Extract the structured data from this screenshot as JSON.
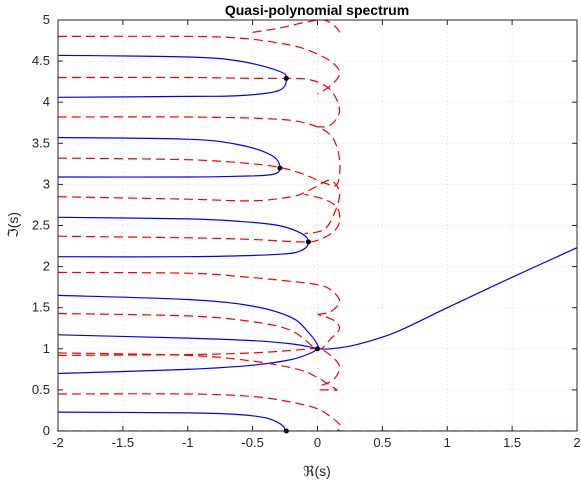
{
  "chart_data": {
    "type": "line",
    "title": "Quasi-polynomial spectrum",
    "xlabel": "ℜ(s)",
    "ylabel": "ℑ(s)",
    "xlim": [
      -2,
      2
    ],
    "ylim": [
      0,
      5
    ],
    "xticks": [
      -2,
      -1.5,
      -1,
      -0.5,
      0,
      0.5,
      1,
      1.5,
      2
    ],
    "xtick_labels": [
      "-2",
      "-1.5",
      "-1",
      "-0.5",
      "0",
      "0.5",
      "1",
      "1.5",
      "2"
    ],
    "yticks": [
      0,
      0.5,
      1,
      1.5,
      2,
      2.5,
      3,
      3.5,
      4,
      4.5,
      5
    ],
    "ytick_labels": [
      "0",
      "0.5",
      "1",
      "1.5",
      "2",
      "2.5",
      "3",
      "3.5",
      "4",
      "4.5",
      "5"
    ],
    "grid": true,
    "colors": {
      "real_curves": "#0000ff",
      "imag_curves": "#ff0000",
      "roots": "#000000"
    },
    "series": [
      {
        "color": "#0000ff",
        "style": "solid",
        "x": [
          -2,
          -1,
          -0.6,
          -0.4,
          -0.3,
          -0.26,
          -0.25
        ],
        "y": [
          0.23,
          0.22,
          0.2,
          0.16,
          0.1,
          0.05,
          0.0
        ]
      },
      {
        "color": "#0000ff",
        "style": "solid",
        "x": [
          -2,
          -1,
          -0.5,
          -0.2,
          -0.05,
          0.0
        ],
        "y": [
          0.7,
          0.75,
          0.8,
          0.87,
          0.95,
          1.0
        ]
      },
      {
        "color": "#0000ff",
        "style": "solid",
        "x": [
          -2,
          -1,
          -0.5,
          -0.2,
          -0.05,
          0.0
        ],
        "y": [
          1.17,
          1.13,
          1.1,
          1.06,
          1.02,
          1.0
        ]
      },
      {
        "color": "#0000ff",
        "style": "solid",
        "x": [
          -2,
          -1,
          -0.5,
          -0.2,
          -0.07,
          0.0,
          0.0
        ],
        "y": [
          1.65,
          1.6,
          1.52,
          1.38,
          1.2,
          1.05,
          1.0
        ]
      },
      {
        "color": "#0000ff",
        "style": "solid",
        "x": [
          0.0,
          0.1,
          0.3,
          0.6,
          1.0,
          1.5,
          2.0
        ],
        "y": [
          1.0,
          1.0,
          1.05,
          1.2,
          1.5,
          1.87,
          2.23
        ]
      },
      {
        "color": "#0000ff",
        "style": "solid",
        "x": [
          -2,
          -1,
          -0.6,
          -0.3,
          -0.12,
          -0.07,
          -0.12,
          -0.3,
          -1,
          -2
        ],
        "y": [
          2.6,
          2.58,
          2.55,
          2.5,
          2.4,
          2.3,
          2.2,
          2.15,
          2.12,
          2.12
        ]
      },
      {
        "color": "#0000ff",
        "style": "solid",
        "x": [
          -2,
          -1,
          -0.6,
          -0.35,
          -0.29,
          -0.35,
          -0.6,
          -1,
          -2
        ],
        "y": [
          3.57,
          3.55,
          3.48,
          3.35,
          3.2,
          3.12,
          3.1,
          3.09,
          3.09
        ]
      },
      {
        "color": "#0000ff",
        "style": "solid",
        "x": [
          -2,
          -1,
          -0.6,
          -0.3,
          -0.24,
          -0.3,
          -0.6,
          -1,
          -2
        ],
        "y": [
          4.57,
          4.55,
          4.5,
          4.38,
          4.29,
          4.14,
          4.08,
          4.07,
          4.06
        ]
      },
      {
        "color": "#ff0000",
        "style": "dashed",
        "x": [
          -2,
          2
        ],
        "y": [
          0.0,
          0.0
        ]
      },
      {
        "color": "#ff0000",
        "style": "dashed",
        "x": [
          -2,
          -1,
          -0.5,
          -0.2,
          0.0,
          0.12,
          0.18,
          0.12,
          0.0
        ],
        "y": [
          0.45,
          0.45,
          0.42,
          0.35,
          0.27,
          0.15,
          0.05,
          -0.02,
          -0.05
        ]
      },
      {
        "color": "#ff0000",
        "style": "dashed",
        "x": [
          -2,
          -1,
          -0.5,
          -0.15,
          0.0,
          0.1,
          0.15,
          0.12,
          0.0
        ],
        "y": [
          0.95,
          0.92,
          0.85,
          0.75,
          0.65,
          0.55,
          0.5,
          0.5,
          0.5
        ]
      },
      {
        "color": "#ff0000",
        "style": "dashed",
        "x": [
          -2,
          -1,
          -0.5,
          -0.2,
          0.0,
          0.1,
          0.17,
          0.12,
          0.0
        ],
        "y": [
          0.92,
          0.93,
          0.95,
          0.98,
          1.0,
          0.92,
          0.78,
          0.62,
          0.54
        ]
      },
      {
        "color": "#ff0000",
        "style": "dashed",
        "x": [
          -2,
          -1,
          -0.5,
          -0.2,
          0.0,
          0.1,
          0.17,
          0.12,
          0.0
        ],
        "y": [
          1.43,
          1.4,
          1.33,
          1.22,
          1.0,
          1.12,
          1.25,
          1.35,
          1.42
        ]
      },
      {
        "color": "#ff0000",
        "style": "dashed",
        "x": [
          -2,
          -1,
          -0.6,
          -0.2,
          0.0,
          0.1,
          0.17,
          0.1,
          0.0
        ],
        "y": [
          1.93,
          1.92,
          1.88,
          1.82,
          1.78,
          1.72,
          1.58,
          1.45,
          1.42
        ]
      },
      {
        "color": "#ff0000",
        "style": "dashed",
        "x": [
          -2,
          -1,
          -0.5,
          -0.12,
          0.0,
          0.12,
          0.17,
          0.15,
          0.05,
          -0.1
        ],
        "y": [
          2.37,
          2.35,
          2.33,
          2.3,
          2.32,
          2.42,
          2.55,
          2.72,
          2.82,
          2.88
        ]
      },
      {
        "color": "#ff0000",
        "style": "dashed",
        "x": [
          -2,
          -1,
          -0.5,
          -0.2,
          -0.1,
          0.0,
          0.1,
          0.17,
          0.13,
          0.05,
          -0.1
        ],
        "y": [
          2.85,
          2.82,
          2.8,
          2.85,
          2.9,
          2.98,
          3.05,
          2.9,
          2.65,
          2.45,
          2.4
        ]
      },
      {
        "color": "#ff0000",
        "style": "dashed",
        "x": [
          -2,
          -1,
          -0.5,
          -0.27,
          -0.1,
          0.05,
          0.15,
          0.17,
          0.1,
          -0.1,
          -0.4,
          -1,
          -2
        ],
        "y": [
          3.32,
          3.3,
          3.25,
          3.2,
          3.12,
          3.02,
          3.0,
          3.3,
          3.6,
          3.75,
          3.8,
          3.82,
          3.82
        ]
      },
      {
        "color": "#ff0000",
        "style": "dashed",
        "x": [
          -2,
          -1,
          -0.5,
          -0.24,
          -0.05,
          0.1,
          0.17,
          0.1,
          0.0
        ],
        "y": [
          4.3,
          4.3,
          4.29,
          4.29,
          4.27,
          4.15,
          3.9,
          3.72,
          3.7
        ]
      },
      {
        "color": "#ff0000",
        "style": "dashed",
        "x": [
          -2,
          -1,
          -0.6,
          -0.3,
          -0.1,
          0.1,
          0.17,
          0.1,
          0.0
        ],
        "y": [
          4.8,
          4.8,
          4.78,
          4.72,
          4.65,
          4.5,
          4.35,
          4.2,
          4.1
        ]
      },
      {
        "color": "#ff0000",
        "style": "dashed",
        "x": [
          -0.5,
          -0.3,
          -0.1,
          0.05,
          0.15,
          0.18
        ],
        "y": [
          4.85,
          4.9,
          4.97,
          5.0,
          4.9,
          4.8
        ]
      }
    ],
    "roots": {
      "x": [
        -0.24,
        -0.29,
        -0.07,
        0.0,
        -0.24
      ],
      "y": [
        4.29,
        3.2,
        2.3,
        1.0,
        0.0
      ]
    }
  }
}
